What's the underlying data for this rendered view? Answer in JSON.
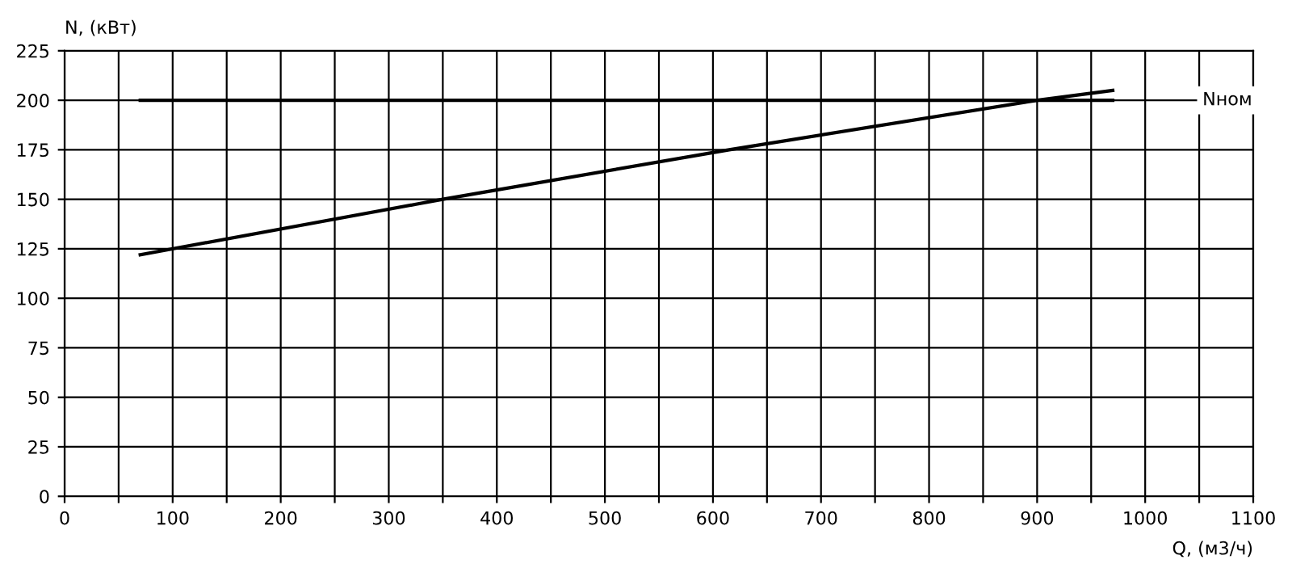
{
  "chart_data": {
    "type": "line",
    "xlabel": "Q, (м3/ч)",
    "ylabel": "N, (кВт)",
    "series": [
      {
        "name": "Nном",
        "color": "#000000",
        "x": [
          70,
          970
        ],
        "values": [
          200,
          200
        ]
      },
      {
        "color": "#000000",
        "x": [
          70,
          350,
          615,
          900,
          970
        ],
        "values": [
          122,
          150,
          175,
          200,
          205
        ]
      }
    ],
    "xlim": [
      0,
      1100
    ],
    "xticks": [
      0,
      {
        "value": 50,
        "label": null
      },
      100,
      {
        "value": 150,
        "label": null
      },
      200,
      {
        "value": 250,
        "label": null
      },
      300,
      {
        "value": 350,
        "label": null
      },
      400,
      {
        "value": 450,
        "label": null
      },
      500,
      {
        "value": 550,
        "label": null
      },
      600,
      {
        "value": 650,
        "label": null
      },
      700,
      {
        "value": 750,
        "label": null
      },
      800,
      {
        "value": 850,
        "label": null
      },
      900,
      {
        "value": 950,
        "label": null
      },
      1000,
      {
        "value": 1050,
        "label": null
      },
      1100
    ],
    "ylim": [
      0,
      225
    ],
    "yticks": [
      0,
      25,
      50,
      75,
      100,
      125,
      150,
      175,
      200,
      225
    ],
    "grid": true,
    "marker": "none",
    "line_style": "solid"
  }
}
